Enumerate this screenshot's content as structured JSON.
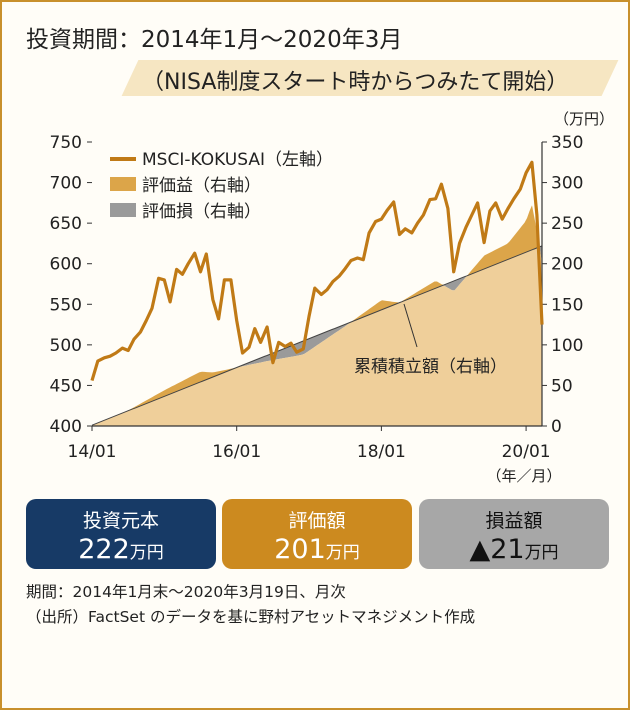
{
  "title": {
    "line1": "投資期間：2014年1月～2020年3月",
    "line2": "（NISA制度スタート時からつみたて開始）"
  },
  "colors": {
    "msci": "#c07a16",
    "gain": "#dca549",
    "loss": "#9a9a9a",
    "contrib": "#efcf9a",
    "frame": "#c8902c",
    "box_invest": "#173a66",
    "box_value": "#cc8a1f",
    "box_pl": "#a7a7a7"
  },
  "chart_data": {
    "type": "line",
    "x_ticks": [
      "14/01",
      "16/01",
      "18/01",
      "20/01"
    ],
    "x_unit": "（年／月）",
    "y_left": {
      "ticks": [
        "750",
        "700",
        "650",
        "600",
        "550",
        "500",
        "450",
        "400"
      ],
      "lim": [
        400,
        750
      ]
    },
    "y_right": {
      "ticks": [
        "350",
        "300",
        "250",
        "200",
        "150",
        "100",
        "50",
        "0"
      ],
      "lim": [
        0,
        350
      ],
      "unit": "（万円）"
    },
    "legend": [
      "MSCI-KOKUSAI（左軸）",
      "評価益（右軸）",
      "評価損（右軸）"
    ],
    "annotation": "累積積立額（右軸）",
    "series": [
      {
        "name": "MSCI-KOKUSAI（左軸）",
        "axis": "left",
        "x": [
          2014.0,
          2014.08,
          2014.17,
          2014.25,
          2014.33,
          2014.42,
          2014.5,
          2014.58,
          2014.67,
          2014.75,
          2014.83,
          2014.92,
          2015.0,
          2015.08,
          2015.17,
          2015.25,
          2015.33,
          2015.42,
          2015.5,
          2015.58,
          2015.67,
          2015.75,
          2015.83,
          2015.92,
          2016.0,
          2016.08,
          2016.17,
          2016.25,
          2016.33,
          2016.42,
          2016.5,
          2016.58,
          2016.67,
          2016.75,
          2016.83,
          2016.92,
          2017.0,
          2017.08,
          2017.17,
          2017.25,
          2017.33,
          2017.42,
          2017.5,
          2017.58,
          2017.67,
          2017.75,
          2017.83,
          2017.92,
          2018.0,
          2018.08,
          2018.17,
          2018.25,
          2018.33,
          2018.42,
          2018.5,
          2018.58,
          2018.67,
          2018.75,
          2018.83,
          2018.92,
          2019.0,
          2019.08,
          2019.17,
          2019.25,
          2019.33,
          2019.42,
          2019.5,
          2019.58,
          2019.67,
          2019.75,
          2019.83,
          2019.92,
          2020.0,
          2020.08,
          2020.15,
          2020.22
        ],
        "values": [
          456,
          480,
          484,
          486,
          490,
          496,
          493,
          507,
          516,
          530,
          545,
          582,
          580,
          553,
          593,
          587,
          600,
          613,
          590,
          612,
          556,
          532,
          580,
          580,
          530,
          490,
          497,
          520,
          503,
          522,
          478,
          503,
          498,
          502,
          491,
          495,
          535,
          570,
          562,
          568,
          578,
          585,
          594,
          604,
          607,
          605,
          638,
          652,
          655,
          666,
          676,
          636,
          643,
          638,
          650,
          660,
          679,
          680,
          698,
          668,
          590,
          625,
          645,
          660,
          675,
          626,
          665,
          675,
          655,
          668,
          680,
          692,
          712,
          725,
          660,
          525
        ]
      },
      {
        "name": "累積積立額（右軸）",
        "axis": "right",
        "x": [
          2014.0,
          2020.22
        ],
        "values": [
          1,
          222
        ]
      },
      {
        "name": "評価額（右軸）",
        "axis": "right",
        "x": [
          2014.0,
          2014.5,
          2015.0,
          2015.5,
          2015.67,
          2016.0,
          2016.42,
          2016.92,
          2017.5,
          2018.0,
          2018.25,
          2018.75,
          2019.0,
          2019.42,
          2019.75,
          2020.0,
          2020.08,
          2020.15,
          2020.22
        ],
        "values": [
          1,
          19,
          44,
          67,
          66,
          72,
          80,
          88,
          123,
          155,
          152,
          179,
          166,
          210,
          225,
          253,
          273,
          240,
          201
        ]
      }
    ]
  },
  "summary": {
    "invest": {
      "label": "投資元本",
      "value": "222",
      "unit": "万円"
    },
    "value": {
      "label": "評価額",
      "value": "201",
      "unit": "万円"
    },
    "pl": {
      "label": "損益額",
      "value": "▲21",
      "unit": "万円"
    }
  },
  "notes": {
    "period": "期間：2014年1月末～2020年3月19日、月次",
    "source": "（出所）FactSet のデータを基に野村アセットマネジメント作成"
  }
}
